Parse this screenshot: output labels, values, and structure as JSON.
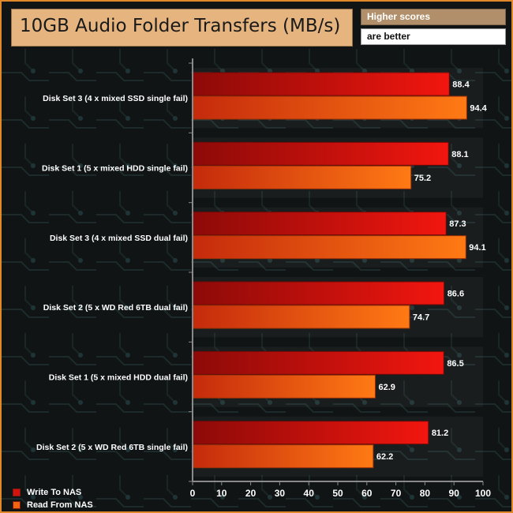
{
  "header": {
    "title": "10GB Audio Folder Transfers (MB/s)",
    "hint_line1": "Higher scores",
    "hint_line2": "are better"
  },
  "legend": [
    {
      "label": "Write To NAS",
      "color": "#d4130e"
    },
    {
      "label": "Read From NAS",
      "color": "#f06412"
    }
  ],
  "colors": {
    "frame": "#e0882a",
    "background": "#101415",
    "title_box": "#e5b47f",
    "write_bar": "#d4130e",
    "read_bar": "#f06412",
    "value_label": "#ffffff"
  },
  "chart_data": {
    "type": "bar",
    "orientation": "horizontal",
    "title": "10GB Audio Folder Transfers (MB/s)",
    "categories": [
      "Disk Set 3 (4 x mixed SSD single fail)",
      "Disk Set 1 (5 x mixed HDD single fail)",
      "Disk Set 3 (4 x mixed SSD dual fail)",
      "Disk Set 2 (5 x WD Red 6TB dual fail)",
      "Disk Set 1 (5 x mixed HDD dual fail)",
      "Disk Set 2 (5 x WD Red 6TB single fail)"
    ],
    "series": [
      {
        "name": "Write To NAS",
        "values": [
          88.4,
          88.1,
          87.3,
          86.6,
          86.5,
          81.2
        ]
      },
      {
        "name": "Read From NAS",
        "values": [
          94.4,
          75.2,
          94.1,
          74.7,
          62.9,
          62.2
        ]
      }
    ],
    "xlim": [
      0,
      100
    ],
    "x_ticks": [
      0,
      10,
      20,
      30,
      40,
      50,
      60,
      70,
      80,
      90,
      100
    ],
    "legend_position": "bottom-left",
    "grid": false
  }
}
